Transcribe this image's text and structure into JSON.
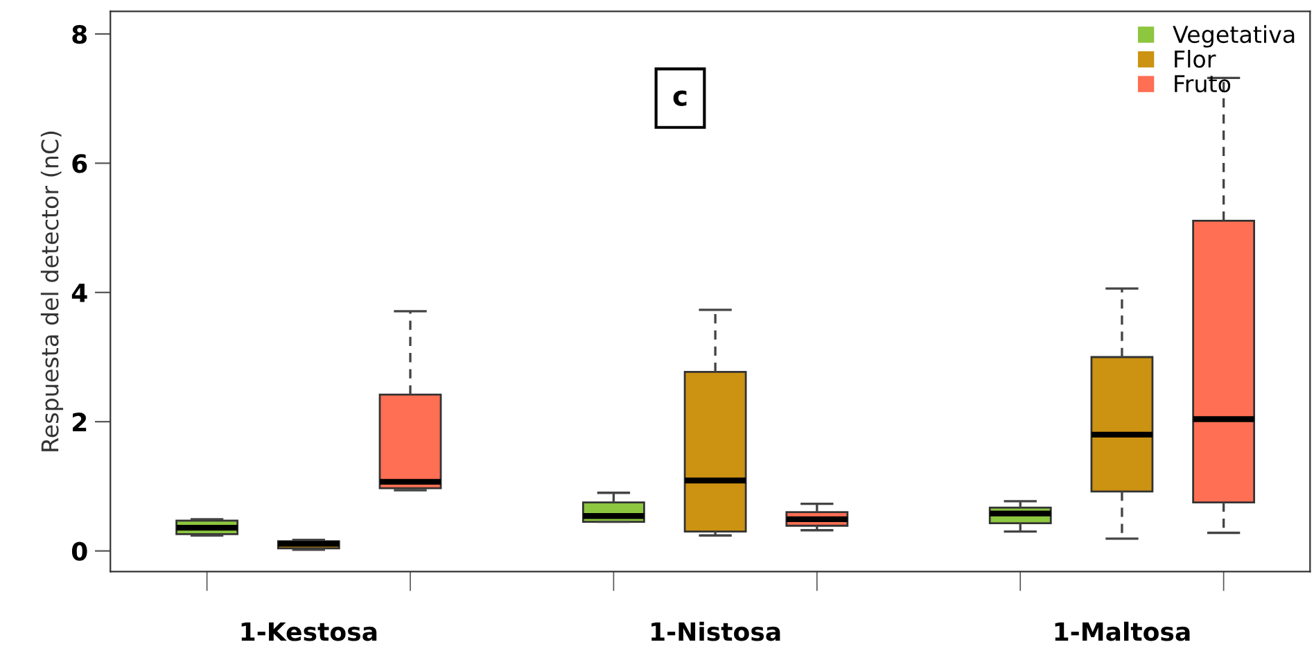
{
  "chart_data": {
    "type": "box",
    "ylabel": "Respuesta del detector (nC)",
    "annotations": [
      "c"
    ],
    "categories": [
      "1-Kestosa",
      "1-Nistosa",
      "1-Maltosa"
    ],
    "ylim": [
      -0.32,
      8.35
    ],
    "yticks": [
      0,
      2,
      4,
      6,
      8
    ],
    "legend": "top right",
    "grid": false,
    "series": [
      {
        "name": "Vegetativa",
        "color": "#8dc63f",
        "boxes": [
          {
            "low": 0.24,
            "q1": 0.26,
            "median": 0.36,
            "q3": 0.47,
            "high": 0.49
          },
          {
            "low": 0.45,
            "q1": 0.45,
            "median": 0.54,
            "q3": 0.75,
            "high": 0.9
          },
          {
            "low": 0.3,
            "q1": 0.43,
            "median": 0.58,
            "q3": 0.67,
            "high": 0.77
          }
        ]
      },
      {
        "name": "Flor",
        "color": "#cc9212",
        "boxes": [
          {
            "low": 0.02,
            "q1": 0.04,
            "median": 0.11,
            "q3": 0.15,
            "high": 0.17
          },
          {
            "low": 0.24,
            "q1": 0.3,
            "median": 1.09,
            "q3": 2.77,
            "high": 3.73
          },
          {
            "low": 0.19,
            "q1": 0.92,
            "median": 1.8,
            "q3": 3.0,
            "high": 4.06
          }
        ]
      },
      {
        "name": "Fruto",
        "color": "#fe6f53",
        "boxes": [
          {
            "low": 0.94,
            "q1": 0.97,
            "median": 1.07,
            "q3": 2.42,
            "high": 3.71
          },
          {
            "low": 0.32,
            "q1": 0.39,
            "median": 0.49,
            "q3": 0.6,
            "high": 0.73
          },
          {
            "low": 0.28,
            "q1": 0.75,
            "median": 2.04,
            "q3": 5.11,
            "high": 7.32
          }
        ]
      }
    ]
  }
}
